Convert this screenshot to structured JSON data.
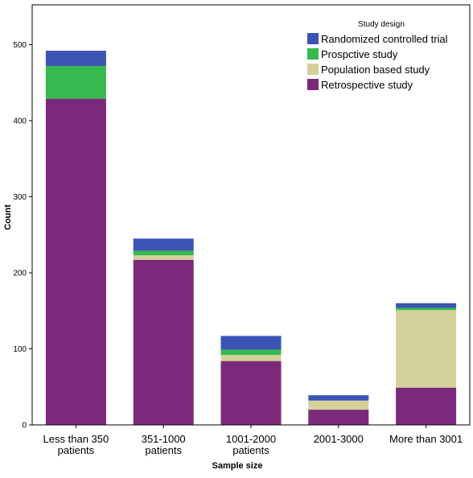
{
  "chart_data": {
    "type": "bar",
    "stacked": true,
    "xlabel": "Sample size",
    "ylabel": "Count",
    "ylim": [
      0,
      530
    ],
    "yticks": [
      0,
      100,
      200,
      300,
      400,
      500
    ],
    "categories": [
      [
        "Less than 350",
        "patients"
      ],
      [
        "351-1000",
        "patients"
      ],
      [
        "1001-2000",
        "patients"
      ],
      [
        "2001-3000"
      ],
      [
        "More than 3001"
      ]
    ],
    "series": [
      {
        "name": "Retrospective study",
        "color": "#7b2a7b",
        "values": [
          429,
          217,
          84,
          20,
          49
        ]
      },
      {
        "name": "Population based study",
        "color": "#d4d09a",
        "values": [
          0,
          6,
          8,
          12,
          102
        ]
      },
      {
        "name": "Prospctive study",
        "color": "#36b94f",
        "values": [
          43,
          6,
          7,
          0,
          3
        ]
      },
      {
        "name": "Randomized controlled trial",
        "color": "#3b54b4",
        "values": [
          20,
          16,
          18,
          7,
          6
        ]
      }
    ],
    "legend": {
      "title": "Study design",
      "position": "top-right",
      "order": [
        "Randomized controlled trial",
        "Prospctive study",
        "Population based study",
        "Retrospective study"
      ]
    },
    "grid": false
  }
}
